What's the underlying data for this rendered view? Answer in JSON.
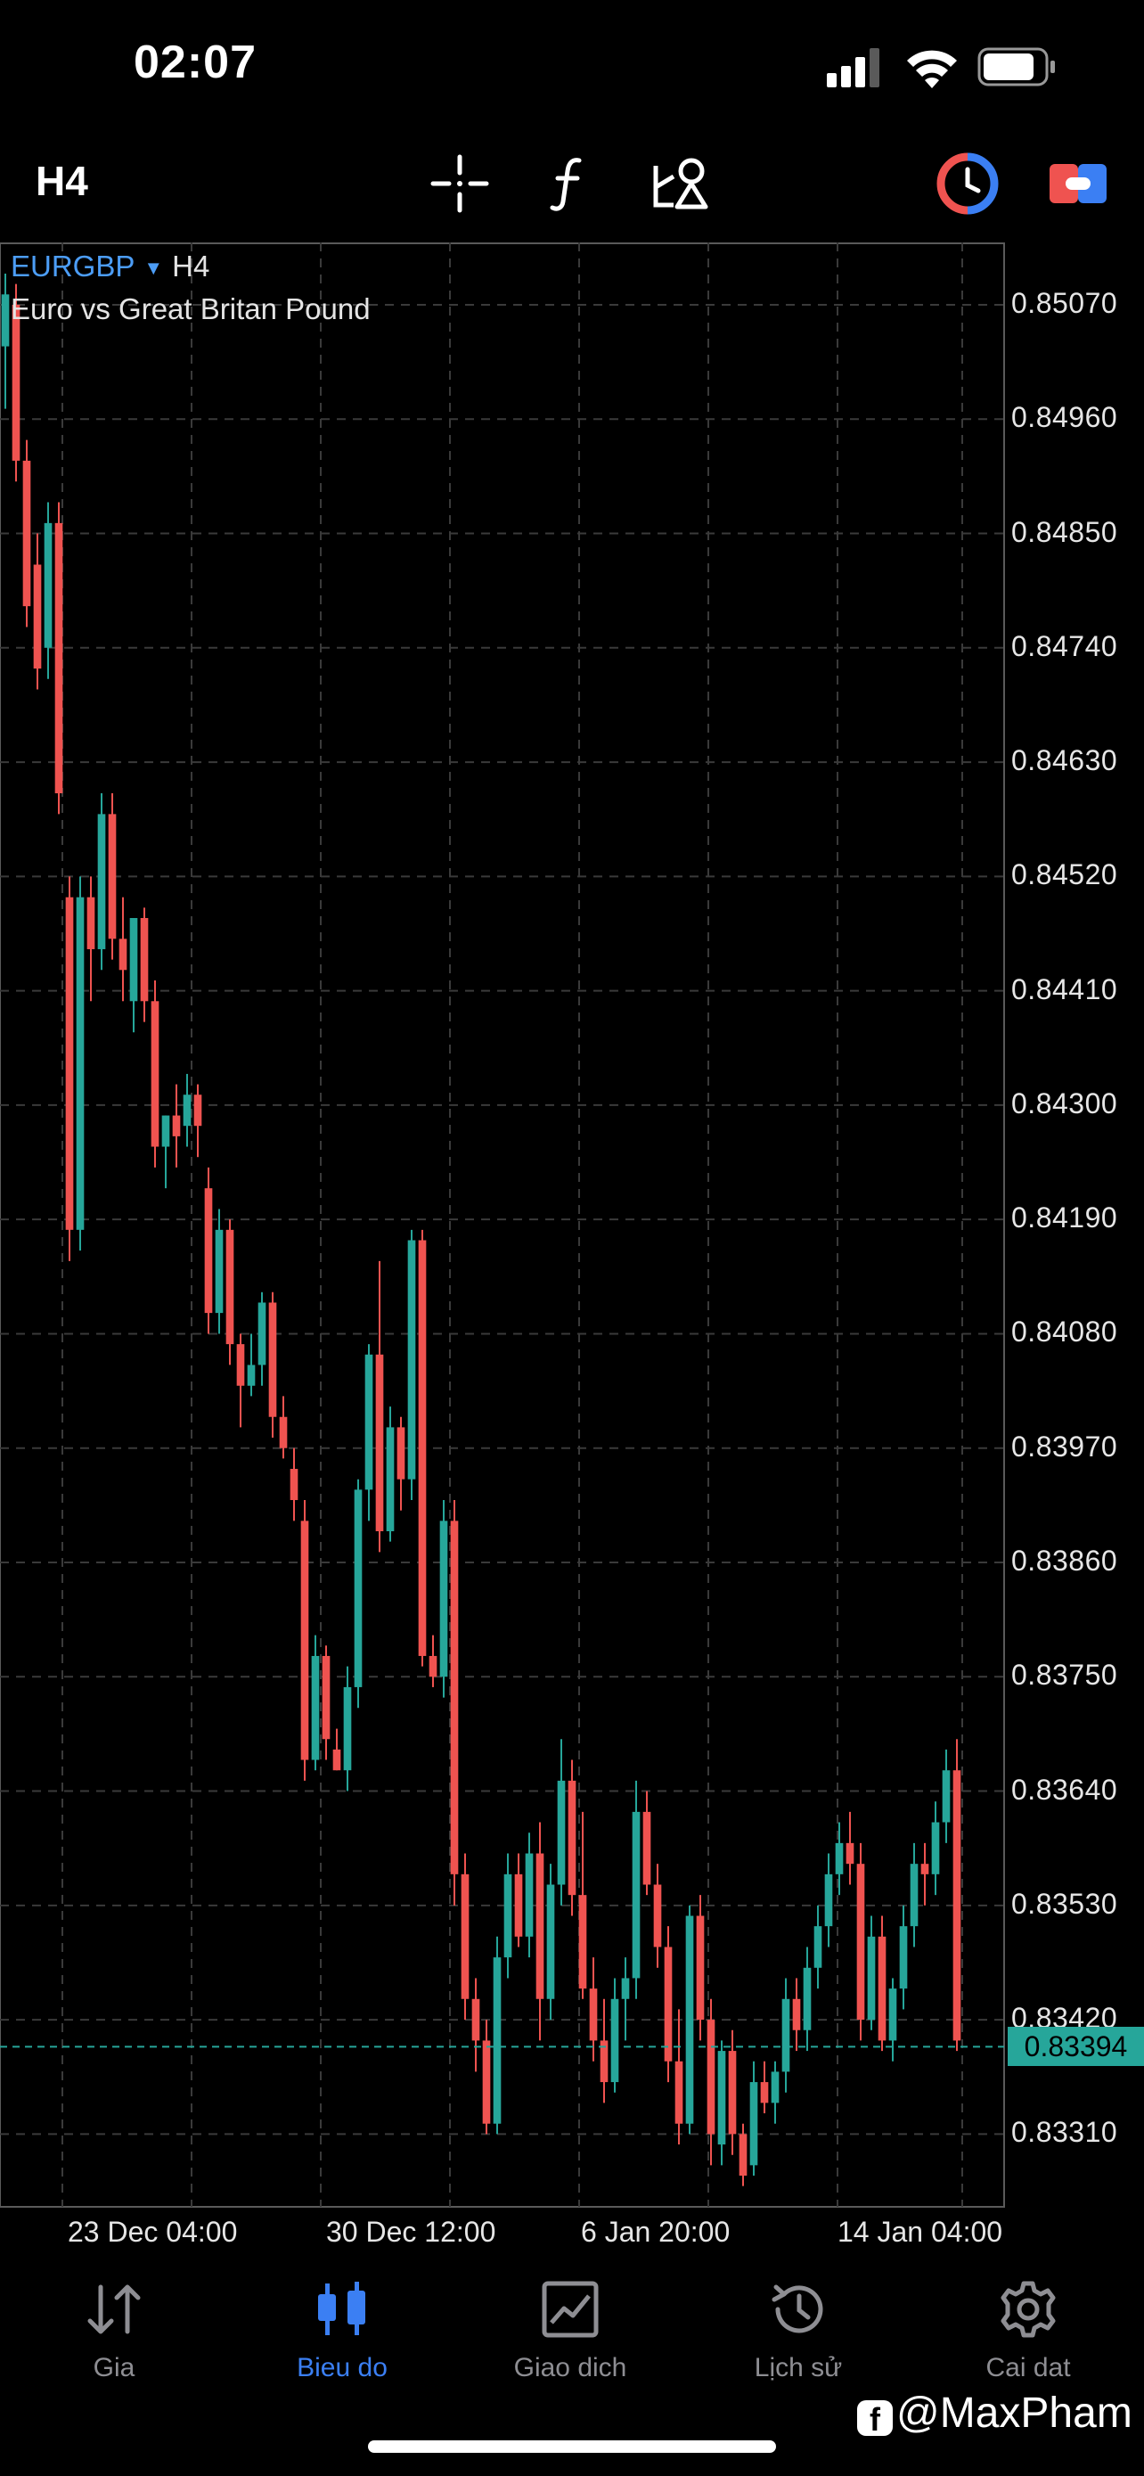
{
  "status_bar": {
    "time": "02:07"
  },
  "toolbar": {
    "timeframe": "H4",
    "buttons": [
      "crosshair-icon",
      "indicators-icon",
      "objects-icon",
      "one-click-trading-icon",
      "trade-icon"
    ]
  },
  "chart": {
    "symbol": "EURGBP",
    "timeframe": "H4",
    "description": "Euro vs Great Britan Pound",
    "bid_price": "0.83394",
    "price_labels": [
      "0.85070",
      "0.84960",
      "0.84850",
      "0.84740",
      "0.84630",
      "0.84520",
      "0.84410",
      "0.84300",
      "0.84190",
      "0.84080",
      "0.83970",
      "0.83860",
      "0.83750",
      "0.83640",
      "0.83530",
      "0.83420",
      "0.83310"
    ],
    "date_labels": [
      "23 Dec 04:00",
      "30 Dec 12:00",
      "6 Jan 20:00",
      "14 Jan 04:00"
    ],
    "colors": {
      "bull": "#26a69a",
      "bear": "#ef5350",
      "grid": "#3a3a3a",
      "bid_line": "#26a69a",
      "background": "#000000"
    }
  },
  "chart_data": {
    "type": "candlestick",
    "y_range": [
      0.8324,
      0.8513
    ],
    "candles": [
      [
        0.8503,
        0.851,
        0.8497,
        0.8508
      ],
      [
        0.8507,
        0.8509,
        0.849,
        0.8492
      ],
      [
        0.8492,
        0.8494,
        0.8476,
        0.8478
      ],
      [
        0.8482,
        0.8485,
        0.847,
        0.8472
      ],
      [
        0.8474,
        0.8488,
        0.8471,
        0.8486
      ],
      [
        0.8486,
        0.8488,
        0.8458,
        0.846
      ],
      [
        0.845,
        0.8452,
        0.8415,
        0.8418
      ],
      [
        0.8418,
        0.8452,
        0.8416,
        0.845
      ],
      [
        0.845,
        0.8452,
        0.844,
        0.8445
      ],
      [
        0.8445,
        0.846,
        0.8443,
        0.8458
      ],
      [
        0.8458,
        0.846,
        0.8444,
        0.8446
      ],
      [
        0.8446,
        0.845,
        0.844,
        0.8443
      ],
      [
        0.844,
        0.8448,
        0.8437,
        0.8448
      ],
      [
        0.8448,
        0.8449,
        0.8438,
        0.844
      ],
      [
        0.844,
        0.8442,
        0.8424,
        0.8426
      ],
      [
        0.8426,
        0.8429,
        0.8422,
        0.8429
      ],
      [
        0.8429,
        0.8432,
        0.8424,
        0.8427
      ],
      [
        0.8428,
        0.8433,
        0.8426,
        0.8431
      ],
      [
        0.8431,
        0.8432,
        0.8425,
        0.8428
      ],
      [
        0.8422,
        0.8424,
        0.8408,
        0.841
      ],
      [
        0.841,
        0.842,
        0.8408,
        0.8418
      ],
      [
        0.8418,
        0.8419,
        0.8405,
        0.8407
      ],
      [
        0.8407,
        0.8408,
        0.8399,
        0.8403
      ],
      [
        0.8403,
        0.8408,
        0.8402,
        0.8405
      ],
      [
        0.8405,
        0.8412,
        0.8403,
        0.8411
      ],
      [
        0.8411,
        0.8412,
        0.8398,
        0.84
      ],
      [
        0.84,
        0.8402,
        0.8396,
        0.8397
      ],
      [
        0.8395,
        0.8397,
        0.839,
        0.8392
      ],
      [
        0.839,
        0.8392,
        0.8365,
        0.8367
      ],
      [
        0.8367,
        0.8379,
        0.8366,
        0.8377
      ],
      [
        0.8377,
        0.8378,
        0.8367,
        0.8369
      ],
      [
        0.8368,
        0.837,
        0.8366,
        0.8366
      ],
      [
        0.8366,
        0.8376,
        0.8364,
        0.8374
      ],
      [
        0.8374,
        0.8394,
        0.8372,
        0.8393
      ],
      [
        0.8393,
        0.8407,
        0.839,
        0.8406
      ],
      [
        0.8406,
        0.8415,
        0.8387,
        0.8389
      ],
      [
        0.8389,
        0.8401,
        0.8388,
        0.8399
      ],
      [
        0.8399,
        0.84,
        0.8391,
        0.8394
      ],
      [
        0.8394,
        0.8418,
        0.8392,
        0.8417
      ],
      [
        0.8417,
        0.8418,
        0.8376,
        0.8377
      ],
      [
        0.8377,
        0.8379,
        0.8374,
        0.8375
      ],
      [
        0.8375,
        0.8392,
        0.8373,
        0.839
      ],
      [
        0.839,
        0.8392,
        0.8353,
        0.8356
      ],
      [
        0.8356,
        0.8358,
        0.8342,
        0.8344
      ],
      [
        0.8344,
        0.8346,
        0.8337,
        0.834
      ],
      [
        0.834,
        0.8342,
        0.8331,
        0.8332
      ],
      [
        0.8332,
        0.835,
        0.8331,
        0.8348
      ],
      [
        0.8348,
        0.8358,
        0.8346,
        0.8356
      ],
      [
        0.8356,
        0.8358,
        0.8349,
        0.835
      ],
      [
        0.835,
        0.836,
        0.8348,
        0.8358
      ],
      [
        0.8358,
        0.8361,
        0.834,
        0.8344
      ],
      [
        0.8344,
        0.8357,
        0.8342,
        0.8355
      ],
      [
        0.8355,
        0.8369,
        0.8353,
        0.8365
      ],
      [
        0.8365,
        0.8367,
        0.8352,
        0.8354
      ],
      [
        0.8354,
        0.8362,
        0.8344,
        0.8345
      ],
      [
        0.8345,
        0.8348,
        0.8338,
        0.834
      ],
      [
        0.834,
        0.8344,
        0.8334,
        0.8336
      ],
      [
        0.8336,
        0.8346,
        0.8335,
        0.8344
      ],
      [
        0.8344,
        0.8348,
        0.834,
        0.8346
      ],
      [
        0.8346,
        0.8365,
        0.8344,
        0.8362
      ],
      [
        0.8362,
        0.8364,
        0.8354,
        0.8355
      ],
      [
        0.8355,
        0.8357,
        0.8347,
        0.8349
      ],
      [
        0.8349,
        0.8351,
        0.8336,
        0.8338
      ],
      [
        0.8338,
        0.8343,
        0.833,
        0.8332
      ],
      [
        0.8332,
        0.8353,
        0.8331,
        0.8352
      ],
      [
        0.8352,
        0.8354,
        0.834,
        0.8342
      ],
      [
        0.8342,
        0.8344,
        0.8328,
        0.8331
      ],
      [
        0.833,
        0.834,
        0.8328,
        0.8339
      ],
      [
        0.8339,
        0.8341,
        0.8329,
        0.8331
      ],
      [
        0.8331,
        0.8332,
        0.8326,
        0.8327
      ],
      [
        0.8328,
        0.8338,
        0.8327,
        0.8336
      ],
      [
        0.8336,
        0.8338,
        0.8333,
        0.8334
      ],
      [
        0.8334,
        0.8338,
        0.8332,
        0.8337
      ],
      [
        0.8337,
        0.8346,
        0.8335,
        0.8344
      ],
      [
        0.8344,
        0.8346,
        0.8339,
        0.8341
      ],
      [
        0.8341,
        0.8349,
        0.8339,
        0.8347
      ],
      [
        0.8347,
        0.8353,
        0.8345,
        0.8351
      ],
      [
        0.8351,
        0.8358,
        0.8349,
        0.8356
      ],
      [
        0.8356,
        0.8361,
        0.8354,
        0.8359
      ],
      [
        0.8359,
        0.8362,
        0.8355,
        0.8357
      ],
      [
        0.8357,
        0.8359,
        0.834,
        0.8342
      ],
      [
        0.8342,
        0.8352,
        0.8341,
        0.835
      ],
      [
        0.835,
        0.8352,
        0.8339,
        0.834
      ],
      [
        0.834,
        0.8346,
        0.8338,
        0.8345
      ],
      [
        0.8345,
        0.8353,
        0.8343,
        0.8351
      ],
      [
        0.8351,
        0.8359,
        0.8349,
        0.8357
      ],
      [
        0.8357,
        0.8359,
        0.8353,
        0.8356
      ],
      [
        0.8356,
        0.8363,
        0.8354,
        0.8361
      ],
      [
        0.8361,
        0.8368,
        0.8359,
        0.8366
      ],
      [
        0.8366,
        0.8369,
        0.8339,
        0.834
      ]
    ]
  },
  "tabbar": {
    "tabs": [
      {
        "label": "Gia",
        "icon": "arrows-up-down-icon",
        "active": false
      },
      {
        "label": "Bieu do",
        "icon": "candlestick-icon",
        "active": true
      },
      {
        "label": "Giao dich",
        "icon": "trade-chart-icon",
        "active": false
      },
      {
        "label": "Lịch sử",
        "icon": "history-clock-icon",
        "active": false
      },
      {
        "label": "Cai dat",
        "icon": "gear-icon",
        "active": false
      }
    ]
  },
  "credit": {
    "text": "@MaxPham"
  }
}
